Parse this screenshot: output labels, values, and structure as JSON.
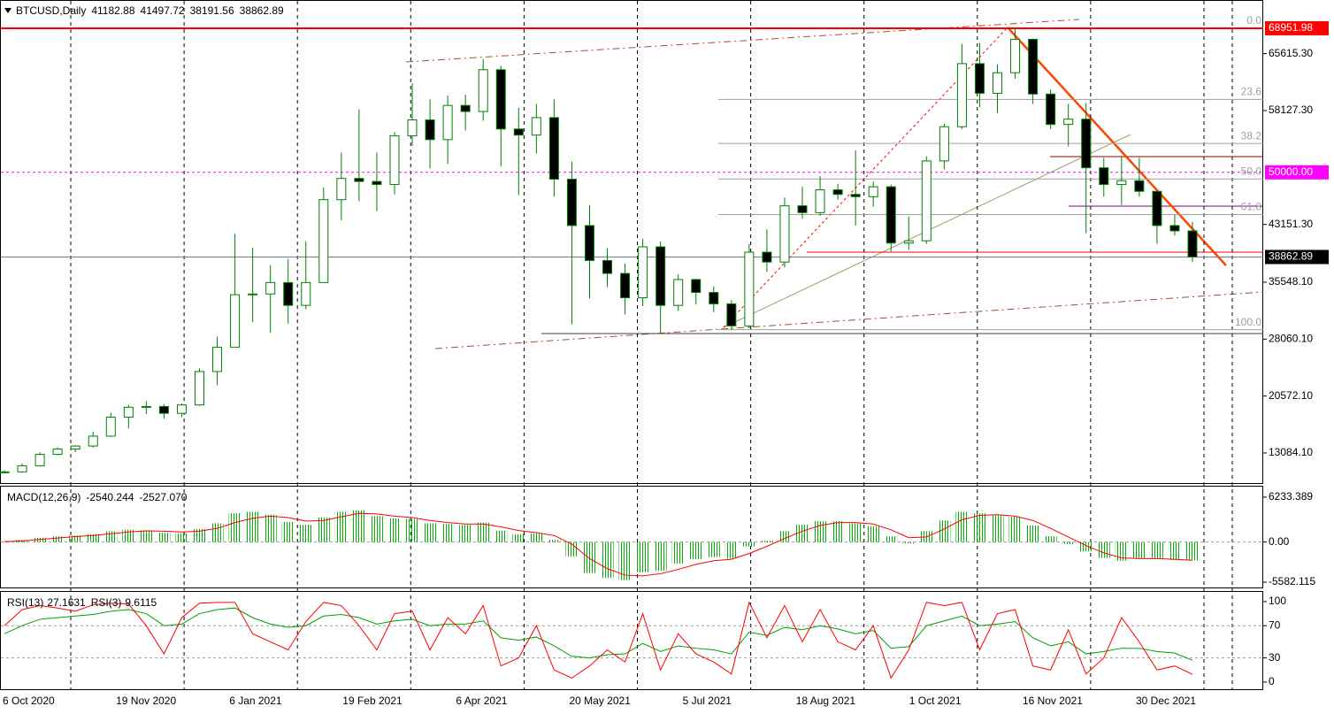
{
  "chart_data": [
    {
      "type": "candlestick",
      "symbol": "BTCUSD,Daily",
      "ohlc": [
        41182.88,
        41497.72,
        38191.56,
        38862.89
      ],
      "date_labels": [
        "6 Oct 2020",
        "19 Nov 2020",
        "6 Jan 2021",
        "19 Feb 2021",
        "6 Apr 2021",
        "20 May 2021",
        "5 Jul 2021",
        "18 Aug 2021",
        "1 Oct 2021",
        "16 Nov 2021",
        "30 Dec 2021"
      ],
      "candles": [
        [
          10500,
          10800,
          10400,
          10600
        ],
        [
          10600,
          11700,
          10500,
          11400
        ],
        [
          11400,
          13200,
          11300,
          12900
        ],
        [
          12900,
          13800,
          12800,
          13600
        ],
        [
          13600,
          14100,
          13200,
          14000
        ],
        [
          14000,
          15900,
          13800,
          15300
        ],
        [
          15300,
          18400,
          15200,
          17800
        ],
        [
          17800,
          19400,
          16300,
          19100
        ],
        [
          19100,
          19900,
          18200,
          19200
        ],
        [
          19200,
          19500,
          17600,
          18300
        ],
        [
          18300,
          19600,
          17800,
          19400
        ],
        [
          19400,
          24200,
          19300,
          23800
        ],
        [
          23800,
          28400,
          22000,
          27000
        ],
        [
          27000,
          41900,
          27000,
          33900
        ],
        [
          33900,
          40100,
          30300,
          34000
        ],
        [
          34000,
          37800,
          28900,
          35500
        ],
        [
          35500,
          38600,
          30100,
          32500
        ],
        [
          32500,
          40900,
          32000,
          35500
        ],
        [
          35500,
          48000,
          35500,
          46400
        ],
        [
          46400,
          52600,
          43700,
          49200
        ],
        [
          49200,
          58300,
          46200,
          48800
        ],
        [
          48800,
          52600,
          44900,
          48400
        ],
        [
          48400,
          55300,
          47100,
          54800
        ],
        [
          54800,
          61700,
          53500,
          56900
        ],
        [
          56900,
          59600,
          50500,
          54300
        ],
        [
          54300,
          60100,
          51100,
          58800
        ],
        [
          58800,
          60200,
          55500,
          58000
        ],
        [
          58000,
          64900,
          56800,
          63500
        ],
        [
          63500,
          64000,
          50800,
          55700
        ],
        [
          55700,
          58500,
          47000,
          54900
        ],
        [
          54900,
          59000,
          52500,
          57200
        ],
        [
          57200,
          59600,
          46800,
          49100
        ],
        [
          49100,
          51400,
          30000,
          43000
        ],
        [
          43000,
          45700,
          33400,
          38400
        ],
        [
          38400,
          40000,
          34900,
          36700
        ],
        [
          36700,
          38000,
          31300,
          33500
        ],
        [
          33500,
          41300,
          32400,
          40200
        ],
        [
          40200,
          40900,
          28800,
          32500
        ],
        [
          32500,
          36600,
          31800,
          35900
        ],
        [
          35900,
          36000,
          32600,
          34200
        ],
        [
          34200,
          35000,
          31600,
          32700
        ],
        [
          32700,
          33200,
          29300,
          29800
        ],
        [
          29800,
          40600,
          29500,
          39500
        ],
        [
          39500,
          42500,
          36900,
          38200
        ],
        [
          38200,
          46700,
          37500,
          45600
        ],
        [
          45600,
          48100,
          43900,
          44700
        ],
        [
          44700,
          49500,
          44300,
          47700
        ],
        [
          47700,
          48500,
          46400,
          47100
        ],
        [
          47100,
          52900,
          43000,
          46800
        ],
        [
          46800,
          48800,
          45500,
          48100
        ],
        [
          48100,
          48400,
          39600,
          40700
        ],
        [
          40700,
          44200,
          39800,
          41000
        ],
        [
          41000,
          52100,
          40600,
          51500
        ],
        [
          51500,
          56400,
          50400,
          56000
        ],
        [
          56000,
          66900,
          55700,
          64300
        ],
        [
          64300,
          67000,
          58600,
          60400
        ],
        [
          60400,
          64200,
          57800,
          63100
        ],
        [
          63100,
          68951.98,
          62300,
          67500
        ],
        [
          67500,
          67600,
          59000,
          60300
        ],
        [
          60300,
          60900,
          55700,
          56300
        ],
        [
          56300,
          59000,
          53400,
          57000
        ],
        [
          57000,
          59100,
          42000,
          50600
        ],
        [
          50600,
          51900,
          46800,
          48400
        ],
        [
          48400,
          52000,
          45700,
          48900
        ],
        [
          48900,
          51900,
          46800,
          47500
        ],
        [
          47500,
          47600,
          40600,
          43000
        ],
        [
          43000,
          44400,
          41700,
          42300
        ],
        [
          42300,
          43500,
          38191.56,
          38862.89
        ]
      ],
      "ylim": [
        9008,
        72553
      ],
      "yticks": [
        {
          "value": 65615.3,
          "label": "65615.30"
        },
        {
          "value": 58127.3,
          "label": "58127.30"
        },
        {
          "value": 43151.3,
          "label": "43151.30"
        },
        {
          "value": 35548.1,
          "label": "35548.10"
        },
        {
          "value": 28060.1,
          "label": "28060.10"
        },
        {
          "value": 20572.1,
          "label": "20572.10"
        },
        {
          "value": 13084.1,
          "label": "13084.10"
        }
      ],
      "up_color": "#ffffff",
      "down_color": "#000000",
      "wick_color": "#008000",
      "price_labels": [
        {
          "value": 68951.98,
          "color": "#ff0000",
          "line_color": "#ff0000",
          "dashed": false
        },
        {
          "value": 50000,
          "label": "50000.00",
          "color": "#ff00ff",
          "line_color": "#ff00ff",
          "dashed": true
        },
        {
          "value": 38862.89,
          "color": "#000000",
          "line_color": "#708090",
          "dashed": false
        }
      ],
      "fib": {
        "high": 68951.98,
        "low": 29300,
        "color": "#a0a0a0",
        "levels": [
          {
            "value": 0,
            "label": "0.0"
          },
          23.6,
          38.2,
          {
            "value": 50,
            "label": "50.0"
          },
          61.8,
          {
            "value": 100,
            "label": "100.0"
          }
        ]
      }
    },
    {
      "type": "macd",
      "name": "MACD(12,26,9)",
      "readout": [
        -2540.244,
        {
          "value": -2527.07,
          "label": "-2527.070"
        }
      ],
      "macd": [
        100,
        300,
        600,
        800,
        900,
        1100,
        1500,
        1700,
        1600,
        1300,
        1200,
        1800,
        2600,
        4000,
        4200,
        3800,
        2800,
        2400,
        3400,
        4200,
        4400,
        3600,
        3300,
        3200,
        2600,
        2500,
        2400,
        2700,
        1600,
        1100,
        1200,
        300,
        -2000,
        -4300,
        -5000,
        -5300,
        -4200,
        -4000,
        -3000,
        -2400,
        -2100,
        -2300,
        -600,
        200,
        1500,
        2400,
        2900,
        2900,
        2600,
        2200,
        800,
        -200,
        1500,
        3000,
        4200,
        4000,
        3700,
        3500,
        2300,
        800,
        -300,
        -1300,
        -2200,
        -2600,
        -2300,
        -2300,
        -2500,
        -2540.244
      ],
      "signal": [
        50,
        150,
        350,
        550,
        750,
        900,
        1150,
        1400,
        1550,
        1500,
        1400,
        1500,
        1900,
        2700,
        3300,
        3600,
        3400,
        2900,
        3000,
        3500,
        4000,
        3900,
        3600,
        3400,
        3000,
        2700,
        2500,
        2500,
        2100,
        1600,
        1300,
        900,
        -300,
        -2300,
        -3700,
        -4600,
        -4700,
        -4400,
        -3800,
        -3100,
        -2600,
        -2400,
        -1600,
        -600,
        500,
        1500,
        2300,
        2700,
        2700,
        2500,
        1700,
        600,
        700,
        1800,
        3100,
        3700,
        3800,
        3600,
        3000,
        1900,
        700,
        -500,
        -1500,
        -2200,
        -2300,
        -2300,
        -2400,
        -2527.07
      ],
      "ylim": [
        -6435,
        7695
      ],
      "yticks": [
        6233.389,
        {
          "value": 0,
          "label": "0.00"
        },
        -5582.115
      ],
      "hist_color": "#00b000",
      "signal_color": "#ff0000"
    },
    {
      "type": "rsi",
      "series": [
        {
          "name": "RSI(13)",
          "readout": 27.1631,
          "color": "#00a000",
          "values": [
            60,
            70,
            78,
            80,
            82,
            84,
            88,
            90,
            85,
            70,
            72,
            85,
            90,
            92,
            80,
            72,
            68,
            70,
            82,
            84,
            80,
            72,
            76,
            78,
            70,
            72,
            72,
            76,
            55,
            52,
            56,
            45,
            32,
            30,
            34,
            35,
            48,
            38,
            45,
            42,
            40,
            35,
            62,
            58,
            68,
            65,
            70,
            66,
            60,
            64,
            42,
            44,
            70,
            76,
            82,
            70,
            72,
            75,
            55,
            45,
            50,
            35,
            38,
            42,
            42,
            38,
            36,
            27.1631
          ]
        },
        {
          "name": "RSI(3)",
          "readout": 9.6115,
          "color": "#ff0000",
          "values": [
            70,
            90,
            95,
            92,
            88,
            96,
            98,
            97,
            70,
            35,
            80,
            98,
            99,
            99,
            60,
            50,
            40,
            75,
            99,
            95,
            70,
            40,
            85,
            88,
            40,
            80,
            60,
            95,
            20,
            30,
            70,
            15,
            5,
            20,
            40,
            25,
            85,
            15,
            60,
            35,
            25,
            10,
            99,
            55,
            95,
            50,
            90,
            50,
            40,
            70,
            5,
            40,
            99,
            95,
            99,
            40,
            85,
            90,
            20,
            15,
            65,
            10,
            30,
            80,
            50,
            15,
            20,
            9.6115
          ]
        }
      ],
      "ylim": [
        -10,
        112
      ],
      "yticks": [
        100,
        70,
        30,
        0
      ],
      "levels": [
        70,
        30
      ]
    }
  ]
}
